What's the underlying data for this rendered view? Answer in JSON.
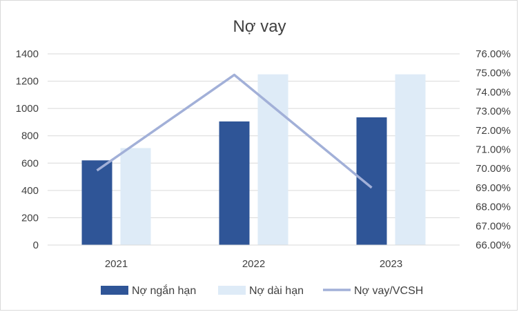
{
  "chart_data": {
    "type": "bar",
    "title": "Nợ vay",
    "xlabel": "",
    "ylabel": "",
    "categories": [
      "2021",
      "2022",
      "2023"
    ],
    "ylim": [
      0,
      1400
    ],
    "yticks": [
      "0",
      "200",
      "400",
      "600",
      "800",
      "1000",
      "1200",
      "1400"
    ],
    "y2lim": [
      66,
      76
    ],
    "y2ticks": [
      "66.00%",
      "67.00%",
      "68.00%",
      "69.00%",
      "70.00%",
      "71.00%",
      "72.00%",
      "73.00%",
      "74.00%",
      "75.00%",
      "76.00%"
    ],
    "grid": true,
    "legend_position": "bottom",
    "series": [
      {
        "name": "Nợ ngắn hạn",
        "type": "bar",
        "axis": "left",
        "color": "#2f5597",
        "values": [
          620,
          905,
          935
        ]
      },
      {
        "name": "Nợ dài hạn",
        "type": "bar",
        "axis": "left",
        "color": "#deebf7",
        "values": [
          710,
          1250,
          1250
        ]
      },
      {
        "name": "Nợ vay/VCSH",
        "type": "line",
        "axis": "right",
        "color": "#a2b0d8",
        "values": [
          69.9,
          74.9,
          69.0
        ]
      }
    ]
  }
}
